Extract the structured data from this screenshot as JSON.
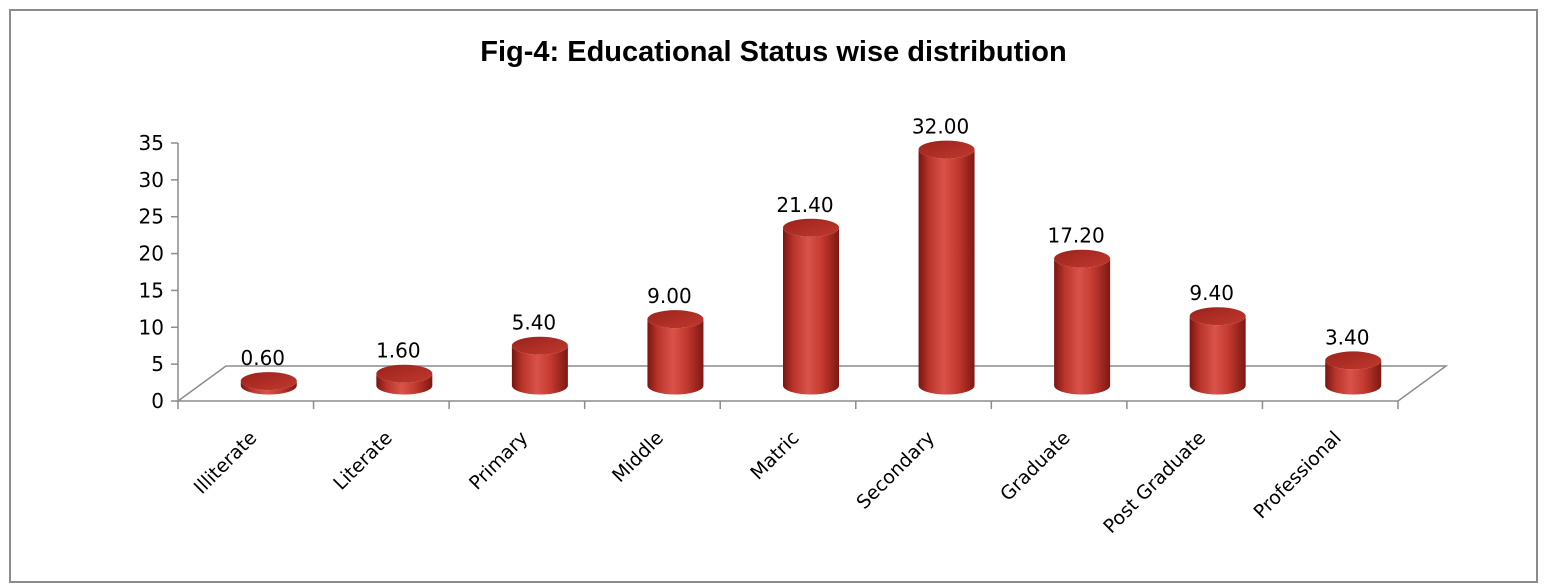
{
  "chart_data": {
    "type": "bar",
    "title": "Fig-4: Educational Status wise distribution",
    "categories": [
      "Illiterate",
      "Literate",
      "Primary",
      "Middle",
      "Matric",
      "Secondary",
      "Graduate",
      "Post Graduate",
      "Professional"
    ],
    "values": [
      0.6,
      1.6,
      5.4,
      9.0,
      21.4,
      32.0,
      17.2,
      9.4,
      3.4
    ],
    "value_labels": [
      "0.60",
      "1.60",
      "5.40",
      "9.00",
      "21.40",
      "32.00",
      "17.20",
      "9.40",
      "3.40"
    ],
    "yticks": [
      "0",
      "5",
      "10",
      "15",
      "20",
      "25",
      "30",
      "35"
    ],
    "ylim": [
      0,
      35
    ],
    "bar_color": "#c0392b",
    "style": "3d-cylinder",
    "grid": false,
    "legend": "none"
  }
}
